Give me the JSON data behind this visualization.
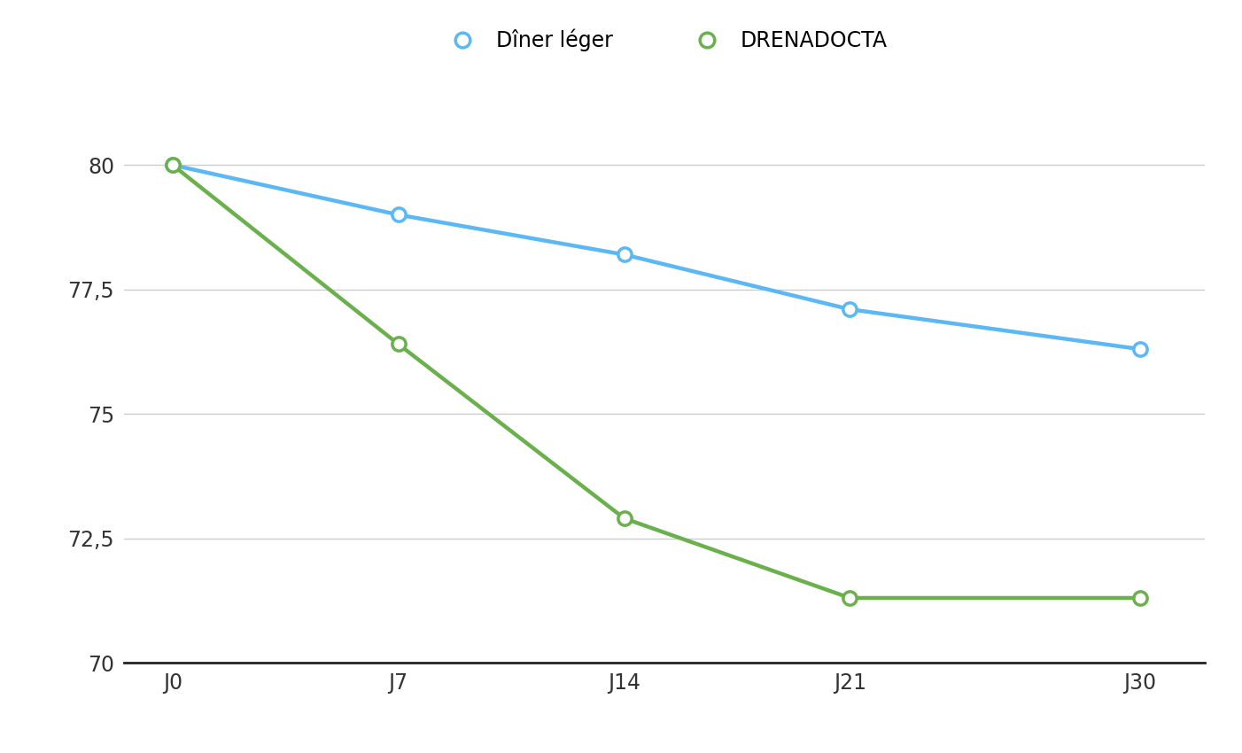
{
  "x_labels": [
    "J0",
    "J7",
    "J14",
    "J21",
    "J30"
  ],
  "x_values": [
    0,
    7,
    14,
    21,
    30
  ],
  "blue_values": [
    80,
    79.0,
    78.2,
    77.1,
    76.3
  ],
  "green_values": [
    80,
    76.4,
    72.9,
    71.3,
    71.3
  ],
  "blue_color": "#5bb8f5",
  "green_color": "#6ab04c",
  "blue_label": "Dîner léger",
  "green_label": "DRENADOCTA",
  "ylim": [
    70,
    81.5
  ],
  "yticks": [
    70,
    72.5,
    75,
    77.5,
    80
  ],
  "ytick_labels": [
    "70",
    "72,5",
    "75",
    "77,5",
    "80"
  ],
  "background_color": "#ffffff",
  "grid_color": "#cccccc",
  "line_width": 3.2,
  "marker_size": 11,
  "marker_edge_width": 2.5,
  "legend_fontsize": 17,
  "tick_fontsize": 17
}
